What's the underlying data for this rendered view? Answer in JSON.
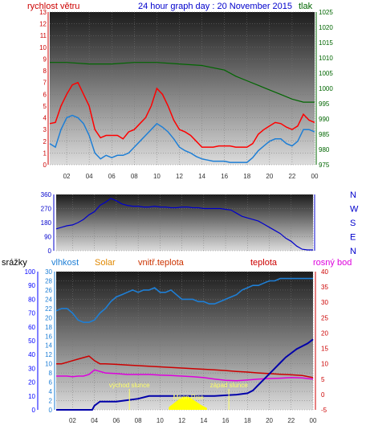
{
  "header": {
    "wind_label": "rychlost větru",
    "title": "24 hour graph day : 20 November 2015",
    "pressure_label": "tlak"
  },
  "colors": {
    "wind": "#cc0000",
    "gust": "#ff0000",
    "pressure": "#006600",
    "direction": "#0000cc",
    "rain": "#0000aa",
    "humidity": "#1e7fd6",
    "solar": "#ffff00",
    "indoor": "#ff3300",
    "temp": "#cc0000",
    "dew": "#dd00dd",
    "axis_rain": "#0000ff"
  },
  "x_ticks": [
    "02",
    "04",
    "06",
    "08",
    "10",
    "12",
    "14",
    "16",
    "18",
    "20",
    "22",
    "00"
  ],
  "panel3_labels": {
    "rain": "srážky",
    "humidity": "vlhkost",
    "solar": "Solar",
    "indoor": "vnitř.teplota",
    "temp": "teplota",
    "dew": "rosný bod",
    "sunrise": "východ slunce",
    "sunset": "západ slunce",
    "moonrise": "Moon Rise"
  },
  "chart_data": [
    {
      "type": "line",
      "x_unit": "hour",
      "x_range": [
        0.5,
        24
      ],
      "y_left": {
        "label": "rychlost větru",
        "range": [
          0,
          13
        ],
        "ticks": [
          0,
          1,
          2,
          3,
          4,
          5,
          6,
          7,
          8,
          9,
          10,
          11,
          12,
          13
        ]
      },
      "y_right": {
        "label": "tlak",
        "range": [
          975,
          1025
        ],
        "ticks": [
          975,
          980,
          985,
          990,
          995,
          1000,
          1005,
          1010,
          1015,
          1020,
          1025
        ]
      },
      "series": [
        {
          "name": "pressure",
          "axis": "right",
          "x": [
            0.5,
            2,
            4,
            6,
            8,
            10,
            12,
            14,
            16,
            17,
            18,
            19,
            20,
            21,
            22,
            23,
            24
          ],
          "y": [
            1008.5,
            1008.5,
            1008,
            1008,
            1008.5,
            1008.5,
            1008,
            1007.5,
            1006,
            1004,
            1002.5,
            1001,
            999.5,
            998,
            996.5,
            995.5,
            995.5
          ]
        },
        {
          "axis": "left",
          "x": [
            0.5,
            1,
            1.5,
            2,
            2.5,
            3,
            3.5,
            4,
            4.5,
            5,
            5.5,
            6,
            6.5,
            7,
            7.5,
            8,
            8.5,
            9,
            9.5,
            10,
            10.5,
            11,
            11.5,
            12,
            12.5,
            13,
            13.5,
            14,
            14.5,
            15,
            15.5,
            16,
            16.5,
            17,
            17.5,
            18,
            18.5,
            19,
            19.5,
            20,
            20.5,
            21,
            21.5,
            22,
            22.5,
            23,
            23.5,
            24
          ],
          "y": [
            3.5,
            3.6,
            5,
            6,
            6.8,
            7,
            6,
            5,
            3,
            2.3,
            2.5,
            2.5,
            2.5,
            2.2,
            2.8,
            3,
            3.5,
            4,
            5,
            6.5,
            6,
            5,
            3.8,
            3,
            2.8,
            2.5,
            2,
            1.5,
            1.5,
            1.5,
            1.6,
            1.6,
            1.6,
            1.5,
            1.5,
            1.5,
            1.8,
            2.6,
            3,
            3.3,
            3.6,
            3.5,
            3.2,
            3,
            3.3,
            4.3,
            3.8,
            3.6
          ]
        },
        {
          "axis": "left",
          "x": [
            0.5,
            1,
            1.5,
            2,
            2.5,
            3,
            3.5,
            4,
            4.5,
            5,
            5.5,
            6,
            6.5,
            7,
            7.5,
            8,
            8.5,
            9,
            9.5,
            10,
            10.5,
            11,
            11.5,
            12,
            12.5,
            13,
            13.5,
            14,
            14.5,
            15,
            15.5,
            16,
            16.5,
            17,
            17.5,
            18,
            18.5,
            19,
            19.5,
            20,
            20.5,
            21,
            21.5,
            22,
            22.5,
            23,
            23.5,
            24
          ],
          "y": [
            1.8,
            1.5,
            3,
            4,
            4.2,
            4,
            3.5,
            2.5,
            1,
            0.5,
            0.8,
            0.6,
            0.8,
            0.8,
            1,
            1.5,
            2,
            2.5,
            3,
            3.5,
            3.2,
            2.8,
            2.2,
            1.5,
            1.2,
            1,
            0.7,
            0.5,
            0.4,
            0.3,
            0.3,
            0.3,
            0.2,
            0.2,
            0.2,
            0.2,
            0.6,
            1.2,
            1.6,
            2,
            2.2,
            2.2,
            1.8,
            1.6,
            2,
            3,
            3,
            2.8
          ]
        }
      ]
    },
    {
      "type": "line",
      "x_unit": "hour",
      "x_range": [
        0.5,
        24
      ],
      "y_left": {
        "range": [
          0,
          360
        ],
        "ticks": [
          0,
          90,
          180,
          270,
          360
        ]
      },
      "y_right": {
        "ticks": [
          "N",
          "W",
          "S",
          "E",
          "N"
        ]
      },
      "series": [
        {
          "x": [
            0.5,
            1,
            1.5,
            2,
            2.5,
            3,
            3.5,
            4,
            4.5,
            5,
            5.5,
            6,
            6.5,
            7,
            7.5,
            8,
            8.5,
            9,
            9.5,
            10,
            10.5,
            11,
            11.5,
            12,
            12.5,
            13,
            13.5,
            14,
            14.5,
            15,
            15.5,
            16,
            16.5,
            17,
            17.5,
            18,
            18.5,
            19,
            19.5,
            20,
            20.5,
            21,
            21.5,
            22,
            22.5,
            23,
            23.5,
            24
          ],
          "y": [
            140,
            150,
            160,
            165,
            180,
            200,
            230,
            250,
            290,
            310,
            335,
            320,
            300,
            290,
            285,
            285,
            280,
            280,
            285,
            280,
            280,
            275,
            275,
            280,
            280,
            275,
            275,
            270,
            270,
            270,
            270,
            265,
            260,
            240,
            220,
            210,
            200,
            190,
            170,
            150,
            130,
            110,
            80,
            60,
            30,
            10,
            5,
            5
          ]
        }
      ]
    },
    {
      "type": "line",
      "x_unit": "hour",
      "x_range": [
        0.5,
        24
      ],
      "axes": [
        {
          "side": "left",
          "name": "srážky",
          "range": [
            0,
            100
          ],
          "ticks": [
            0,
            10,
            20,
            30,
            40,
            50,
            60,
            70,
            80,
            90,
            100
          ]
        },
        {
          "side": "left",
          "name": "vlhkost",
          "range": [
            0,
            30
          ],
          "ticks": [
            0,
            2,
            4,
            6,
            8,
            10,
            12,
            14,
            16,
            18,
            20,
            22,
            24,
            26,
            28,
            30
          ]
        },
        {
          "side": "right",
          "name": "teplota",
          "range": [
            -5,
            40
          ],
          "ticks": [
            -5,
            0,
            5,
            10,
            15,
            20,
            25,
            30,
            35,
            40
          ]
        }
      ],
      "annotations": [
        {
          "text": "východ slunce",
          "x": 7.2
        },
        {
          "text": "západ slunce",
          "x": 16.3
        },
        {
          "text": "Moon Rise",
          "x": 12.6
        }
      ],
      "series": [
        {
          "name": "vlhkost",
          "axis": "humidity",
          "x": [
            0.5,
            1,
            1.5,
            2,
            2.5,
            3,
            3.5,
            4,
            4.5,
            5,
            5.5,
            6,
            6.5,
            7,
            7.5,
            8,
            8.5,
            9,
            9.5,
            10,
            10.5,
            11,
            11.5,
            12,
            12.5,
            13,
            13.5,
            14,
            14.5,
            15,
            15.5,
            16,
            16.5,
            17,
            17.5,
            18,
            18.5,
            19,
            19.5,
            20,
            20.5,
            21,
            21.5,
            22,
            22.5,
            23,
            23.5,
            24
          ],
          "y": [
            21.5,
            22,
            22,
            21,
            19.5,
            19,
            19,
            19.5,
            21,
            22,
            23.5,
            24.5,
            25,
            25.5,
            26,
            25.5,
            26,
            26,
            26.5,
            25.5,
            25.5,
            26,
            25,
            24,
            24,
            24,
            23.5,
            23.5,
            23,
            23,
            23.5,
            24,
            24.5,
            25,
            26,
            26.5,
            27,
            27,
            27.5,
            28,
            28,
            28.5,
            28.5,
            28.5,
            28.5,
            28.5,
            28.5,
            28.5
          ]
        },
        {
          "name": "srážky",
          "axis": "rain",
          "x": [
            0.5,
            3.8,
            4,
            4.5,
            5,
            6,
            7,
            8,
            9,
            10,
            11,
            12,
            13,
            14,
            15,
            16,
            17,
            18,
            18.5,
            19,
            19.5,
            20,
            20.5,
            21,
            21.5,
            22,
            22.5,
            23,
            23.5,
            24
          ],
          "y": [
            0,
            0,
            3,
            6,
            6,
            6,
            7,
            8,
            10,
            10,
            10,
            10,
            10,
            10,
            10,
            10.5,
            11,
            12,
            14,
            18,
            22,
            26,
            30,
            34,
            38,
            41,
            44,
            46,
            48,
            51
          ]
        },
        {
          "name": "vnitř.teplota",
          "axis": "temp",
          "x": [
            0.5,
            1,
            1.5,
            2,
            2.5,
            3,
            3.5,
            4,
            4.5,
            5,
            6,
            7,
            8,
            9,
            10,
            11,
            12,
            13,
            14,
            15,
            16,
            17,
            18,
            19,
            20,
            21,
            22,
            23,
            24
          ],
          "y": [
            10,
            10,
            10.5,
            11,
            11.5,
            12,
            12.5,
            11,
            10,
            10,
            9.8,
            9.6,
            9.4,
            9.2,
            9,
            8.8,
            8.6,
            8.4,
            8.2,
            8,
            7.8,
            7.5,
            7.3,
            7,
            6.8,
            6.6,
            6.4,
            6.2,
            5.5
          ]
        },
        {
          "name": "rosný bod",
          "axis": "temp",
          "x": [
            0.5,
            1,
            1.5,
            2,
            2.5,
            3,
            3.5,
            4,
            4.5,
            5,
            6,
            7,
            8,
            9,
            10,
            11,
            12,
            13,
            14,
            15,
            16,
            17,
            18,
            19,
            20,
            21,
            22,
            23,
            24
          ],
          "y": [
            6,
            6,
            6,
            5.8,
            6,
            6,
            6.5,
            8,
            7.5,
            7,
            6.8,
            6.5,
            6.5,
            6.5,
            6.3,
            6.2,
            6,
            5.8,
            5.5,
            5,
            4.6,
            4.5,
            4.7,
            5,
            5.2,
            5.3,
            5.5,
            5.4,
            5
          ]
        },
        {
          "name": "Solar",
          "axis": "solar",
          "x": [
            10.8,
            11.3,
            11.8,
            12.3,
            12.8,
            13.3,
            13.8,
            14.3
          ],
          "y": [
            0.6,
            1.5,
            2.4,
            3.0,
            2.6,
            1.8,
            1.0,
            0.4
          ]
        }
      ]
    }
  ]
}
